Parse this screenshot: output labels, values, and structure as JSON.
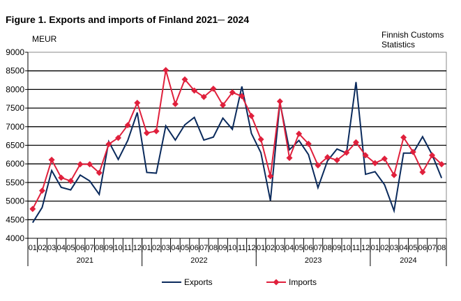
{
  "chart_data": {
    "type": "line",
    "title": "Figure 1. Exports and imports of Finland 2021─ 2024",
    "ylabel": "MEUR",
    "source_note": [
      "Finnish Customs",
      "Statistics"
    ],
    "ylim": [
      4000,
      9000
    ],
    "yticks": [
      4000,
      4500,
      5000,
      5500,
      6000,
      6500,
      7000,
      7500,
      8000,
      8500,
      9000
    ],
    "grid": true,
    "legend_position": "bottom",
    "years": [
      {
        "label": "2021",
        "months": 12
      },
      {
        "label": "2022",
        "months": 12
      },
      {
        "label": "2023",
        "months": 12
      },
      {
        "label": "2024",
        "months": 8
      }
    ],
    "categories": [
      "01",
      "02",
      "03",
      "04",
      "05",
      "06",
      "07",
      "08",
      "09",
      "10",
      "11",
      "12",
      "01",
      "02",
      "03",
      "04",
      "05",
      "06",
      "07",
      "08",
      "09",
      "10",
      "11",
      "12",
      "01",
      "02",
      "03",
      "04",
      "05",
      "06",
      "07",
      "08",
      "09",
      "10",
      "11",
      "12",
      "01",
      "02",
      "03",
      "04",
      "05",
      "06",
      "07",
      "08"
    ],
    "series": [
      {
        "name": "Exports",
        "color": "#0a2a5c",
        "markers": false,
        "values": [
          4420,
          4830,
          5820,
          5370,
          5300,
          5700,
          5540,
          5180,
          6600,
          6120,
          6630,
          7380,
          5770,
          5750,
          7020,
          6640,
          7050,
          7250,
          6640,
          6720,
          7230,
          6930,
          8080,
          6820,
          6300,
          5010,
          7650,
          6380,
          6630,
          6250,
          5360,
          6080,
          6400,
          6290,
          8200,
          5720,
          5790,
          5440,
          4740,
          6290,
          6290,
          6730,
          6250,
          5620
        ]
      },
      {
        "name": "Imports",
        "color": "#e0203c",
        "markers": true,
        "values": [
          4790,
          5280,
          6110,
          5630,
          5540,
          5990,
          5990,
          5760,
          6530,
          6700,
          7040,
          7640,
          6830,
          6880,
          8520,
          7610,
          8270,
          7970,
          7800,
          8020,
          7580,
          7920,
          7820,
          7290,
          6660,
          5670,
          7680,
          6160,
          6810,
          6540,
          5960,
          6180,
          6100,
          6300,
          6580,
          6230,
          6020,
          6140,
          5700,
          6710,
          6320,
          5780,
          6230,
          5990
        ]
      }
    ]
  }
}
